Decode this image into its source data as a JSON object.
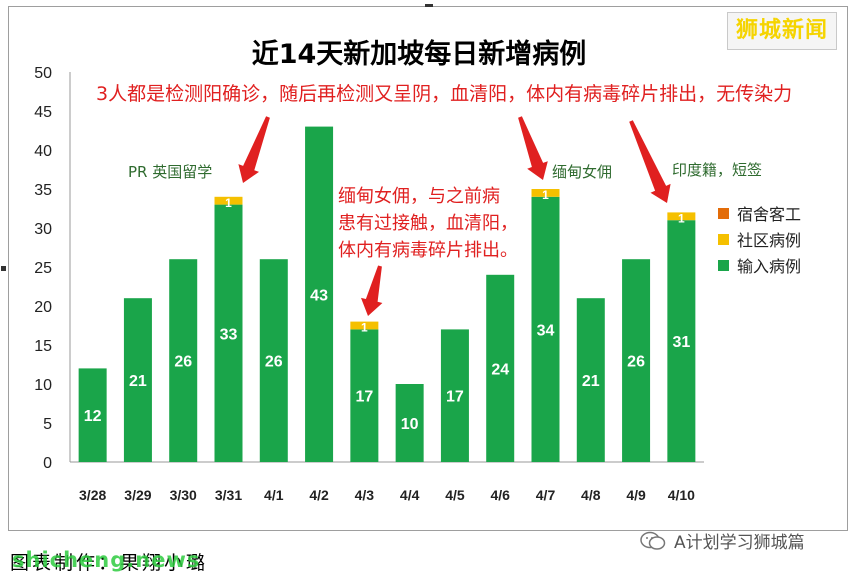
{
  "chart_data": {
    "type": "bar",
    "title": "近14天新加坡每日新增病例",
    "categories": [
      "3/28",
      "3/29",
      "3/30",
      "3/31",
      "4/1",
      "4/2",
      "4/3",
      "4/4",
      "4/5",
      "4/6",
      "4/7",
      "4/8",
      "4/9",
      "4/10"
    ],
    "series": [
      {
        "name": "宿舍客工",
        "color": "#e36c09",
        "values": [
          0,
          0,
          0,
          0,
          0,
          0,
          0,
          0,
          0,
          0,
          0,
          0,
          0,
          0
        ]
      },
      {
        "name": "社区病例",
        "color": "#f5c000",
        "values": [
          0,
          0,
          0,
          1,
          0,
          0,
          1,
          0,
          0,
          0,
          1,
          0,
          0,
          1
        ]
      },
      {
        "name": "输入病例",
        "color": "#1aa54a",
        "values": [
          12,
          21,
          26,
          33,
          26,
          43,
          17,
          10,
          17,
          24,
          34,
          21,
          26,
          31
        ]
      }
    ],
    "ylim": [
      0,
      50
    ],
    "yticks": [
      0,
      5,
      10,
      15,
      20,
      25,
      30,
      35,
      40,
      45,
      50
    ],
    "grid": false,
    "legend": "right",
    "annotations": {
      "top": "3人都是检测阳确诊，随后再检测又呈阴，血清阳，体内有病毒碎片排出，无传染力",
      "mid": [
        "缅甸女佣，与之前病",
        "患有过接触，血清阳，",
        "体内有病毒碎片排出。"
      ],
      "notes": [
        "PR 英国留学",
        "缅甸女佣",
        "印度籍，短签"
      ]
    }
  },
  "watermark": "狮城新闻",
  "footer": {
    "caption": "图表制作：果翔小璐",
    "logo": "shicheng.news",
    "account": "A计划学习狮城篇"
  },
  "colors": {
    "annotation": "#e02020",
    "note": "#2f6b2f"
  }
}
